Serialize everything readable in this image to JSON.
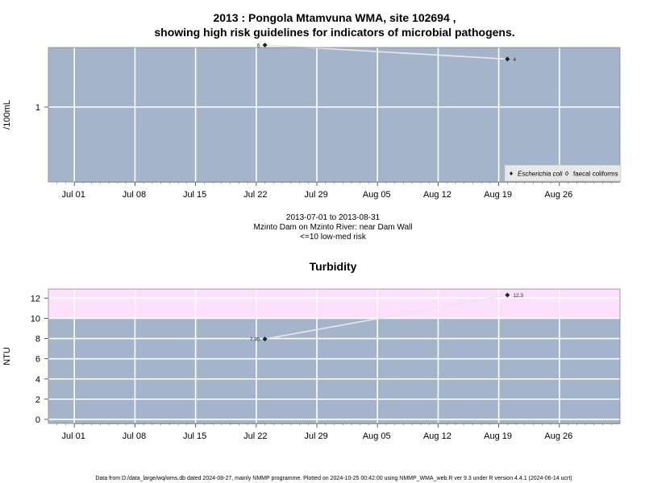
{
  "chart_data": [
    {
      "type": "line",
      "title": "2013 : Pongola Mtamvuna WMA, site 102694 ,",
      "subtitle": "showing high risk guidelines for indicators of microbial pathogens.",
      "ylabel": "/100mL",
      "y_scale": "log",
      "y_ticks": [
        {
          "value": 1,
          "label": "1"
        }
      ],
      "x_ticks": [
        "Jul 01",
        "Jul 08",
        "Jul 15",
        "Jul 22",
        "Jul 29",
        "Aug 05",
        "Aug 12",
        "Aug 19",
        "Aug 26"
      ],
      "x_tick_dates": [
        "2013-07-01",
        "2013-07-08",
        "2013-07-15",
        "2013-07-22",
        "2013-07-29",
        "2013-08-05",
        "2013-08-12",
        "2013-08-19",
        "2013-08-26"
      ],
      "xlim": [
        "2013-06-28",
        "2013-09-02"
      ],
      "grid": true,
      "legend_position": "bottom-right",
      "series": [
        {
          "name": "Escherichia coli",
          "marker": "filled-diamond",
          "points": [
            {
              "x": "2013-07-23",
              "y": 6,
              "label": "6"
            },
            {
              "x": "2013-08-20",
              "y": 4,
              "label": "4"
            }
          ]
        }
      ],
      "legend": [
        {
          "label": "Escherichia coli",
          "marker": "filled-diamond",
          "italic": true
        },
        {
          "label": "faecal coliforms",
          "marker": "open-diamond",
          "italic": false
        }
      ],
      "caption_lines": [
        "2013-07-01 to 2013-08-31",
        "Mzinto Dam on Mzinto River: near Dam Wall",
        "<=10 low-med risk"
      ]
    },
    {
      "type": "line",
      "title": "Turbidity",
      "ylabel": "NTU",
      "ylim": [
        -0.4,
        12.9
      ],
      "y_ticks": [
        0,
        2,
        4,
        6,
        8,
        10,
        12
      ],
      "x_ticks": [
        "Jul 01",
        "Jul 08",
        "Jul 15",
        "Jul 22",
        "Jul 29",
        "Aug 05",
        "Aug 12",
        "Aug 19",
        "Aug 26"
      ],
      "x_tick_dates": [
        "2013-07-01",
        "2013-07-08",
        "2013-07-15",
        "2013-07-22",
        "2013-07-29",
        "2013-08-05",
        "2013-08-12",
        "2013-08-19",
        "2013-08-26"
      ],
      "xlim": [
        "2013-06-28",
        "2013-09-02"
      ],
      "grid": true,
      "risk_band": {
        "from": 10,
        "to": 12.9
      },
      "series": [
        {
          "name": "",
          "marker": "filled-diamond",
          "points": [
            {
              "x": "2013-07-23",
              "y": 7.95,
              "label": "7.95"
            },
            {
              "x": "2013-08-20",
              "y": 12.3,
              "label": "12.3"
            }
          ]
        }
      ]
    }
  ],
  "colors": {
    "plot_bg": "#a3b4cb",
    "risk_band": "#fde0fb",
    "grid": "#ffffff",
    "line": "#e8e8e8",
    "marker": "#222222"
  },
  "footer": "Data from D:/data_large/wq/wms.db dated 2024-08-27, mainly NMMP programme. Plotted on 2024-10-25 00:42:00 using NMMP_WMA_web.R ver 9.3 under R version 4.4.1 (2024-06-14 ucrt)"
}
